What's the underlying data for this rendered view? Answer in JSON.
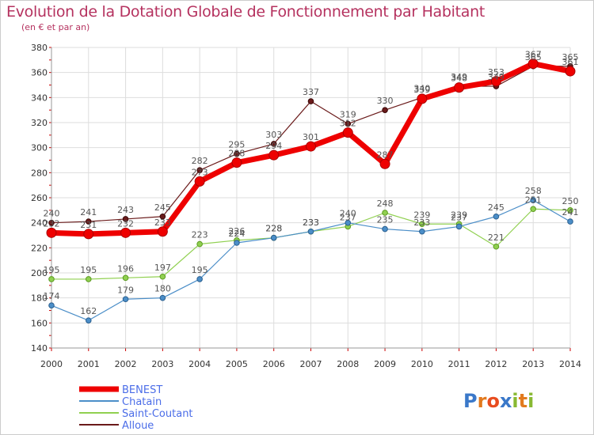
{
  "chart_data": {
    "type": "line",
    "title": "Evolution de la Dotation Globale de Fonctionnement par Habitant",
    "subtitle": "(en € et par an)",
    "x": [
      2000,
      2001,
      2002,
      2003,
      2004,
      2005,
      2006,
      2007,
      2008,
      2009,
      2010,
      2011,
      2012,
      2013,
      2014
    ],
    "ylim": [
      140,
      380
    ],
    "yticks": [
      140,
      160,
      180,
      200,
      220,
      240,
      260,
      280,
      300,
      320,
      340,
      360,
      380
    ],
    "grid": true,
    "series": [
      {
        "name": "BENEST",
        "color": "#ee0000",
        "values": [
          232,
          231,
          232,
          233,
          273,
          288,
          294,
          301,
          312,
          287,
          339,
          348,
          353,
          367,
          361
        ]
      },
      {
        "name": "Chatain",
        "color": "#4b8ec8",
        "values": [
          174,
          162,
          179,
          180,
          195,
          224,
          228,
          233,
          240,
          235,
          233,
          237,
          245,
          258,
          241
        ]
      },
      {
        "name": "Saint-Coutant",
        "color": "#90d050",
        "values": [
          195,
          195,
          196,
          197,
          223,
          226,
          228,
          233,
          237,
          248,
          239,
          239,
          221,
          251,
          250
        ]
      },
      {
        "name": "Alloue",
        "color": "#6a1a1a",
        "values": [
          240,
          241,
          243,
          245,
          282,
          295,
          303,
          337,
          319,
          330,
          340,
          349,
          349,
          365,
          365
        ]
      }
    ],
    "legend_position": "bottom-left"
  },
  "branding": {
    "logo_text": "Proxiti",
    "logo_colors": [
      "#3a78c9",
      "#e27a1e",
      "#e84c1f",
      "#3a78c9",
      "#88b932",
      "#e27a1e",
      "#88b932"
    ]
  }
}
